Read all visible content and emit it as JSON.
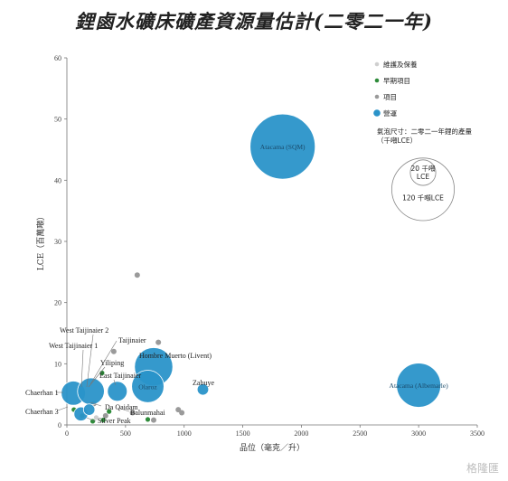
{
  "chart_data": {
    "type": "scatter",
    "title": "鋰鹵水礦床礦產資源量估計(二零二一年)",
    "xlabel": "品位（毫克／升）",
    "ylabel": "LCE（百萬噸）",
    "xlim": [
      0,
      3500
    ],
    "ylim": [
      0,
      60
    ],
    "xticks": [
      0,
      500,
      1000,
      1500,
      2000,
      2500,
      3000,
      3500
    ],
    "yticks": [
      0,
      10,
      20,
      30,
      40,
      50,
      60
    ],
    "legend": {
      "position": "top-right",
      "entries": [
        {
          "name": "維護及保養",
          "color": "#cfcfcf"
        },
        {
          "name": "早期項目",
          "color": "#2e8b3a"
        },
        {
          "name": "項目",
          "color": "#9a9a9a"
        },
        {
          "name": "營運",
          "color": "#2a93c9"
        }
      ],
      "size_note": "氣泡尺寸：二零二一年鋰的產量（千噸LCE）",
      "size_refs": [
        {
          "label": "20 千噸 LCE",
          "value": 20
        },
        {
          "label": "120 千噸LCE",
          "value": 120
        }
      ]
    },
    "series": [
      {
        "name": "營運",
        "color": "#2a93c9",
        "points": [
          {
            "label": "Atacama (SQM)",
            "x": 1840,
            "y": 45.5,
            "size": 130
          },
          {
            "label": "Atacama (Albemarle)",
            "x": 3000,
            "y": 6.5,
            "size": 60
          },
          {
            "label": "Hombre Muerto (Livent)",
            "x": 740,
            "y": 9.5,
            "size": 45
          },
          {
            "label": "Olaroz",
            "x": 690,
            "y": 6.3,
            "size": 32
          },
          {
            "label": "Chaerhan 1",
            "x": 55,
            "y": 5.2,
            "size": 18
          },
          {
            "label": "Taijinaier",
            "x": 205,
            "y": 5.5,
            "size": 22
          },
          {
            "label": "East Taijinaier",
            "x": 430,
            "y": 5.5,
            "size": 12
          },
          {
            "label": "Zabuye",
            "x": 1160,
            "y": 5.8,
            "size": 4
          },
          {
            "label": "Chaerhan 3",
            "x": 120,
            "y": 1.8,
            "size": 6
          },
          {
            "label": "Da Qaidam",
            "x": 190,
            "y": 2.5,
            "size": 4
          }
        ]
      },
      {
        "name": "項目",
        "color": "#9a9a9a",
        "points": [
          {
            "x": 600,
            "y": 24.5
          },
          {
            "x": 780,
            "y": 13.5
          },
          {
            "x": 400,
            "y": 12.0
          },
          {
            "x": 980,
            "y": 2.0
          },
          {
            "x": 950,
            "y": 2.5
          },
          {
            "x": 740,
            "y": 0.8
          },
          {
            "x": 330,
            "y": 1.5
          },
          {
            "x": 560,
            "y": 2.0
          },
          {
            "x": 230,
            "y": 3.5
          }
        ]
      },
      {
        "name": "早期項目",
        "color": "#2e8b3a",
        "points": [
          {
            "label": "Yiliping",
            "x": 300,
            "y": 8.5
          },
          {
            "x": 60,
            "y": 2.5
          },
          {
            "x": 130,
            "y": 1.5
          },
          {
            "label": "Balunmahai",
            "x": 360,
            "y": 2.2
          },
          {
            "x": 310,
            "y": 0.8
          },
          {
            "x": 220,
            "y": 0.6
          },
          {
            "label": "Silver Peak",
            "x": 690,
            "y": 0.9
          }
        ]
      },
      {
        "name": "維護及保養",
        "color": "#cfcfcf",
        "points": [
          {
            "x": 110,
            "y": 1.0
          },
          {
            "x": 250,
            "y": 1.2
          }
        ]
      }
    ],
    "extra_labels": [
      {
        "text": "West Taijinaier 2"
      },
      {
        "text": "West Taijinaier 1"
      }
    ]
  },
  "watermark": "格隆匯"
}
